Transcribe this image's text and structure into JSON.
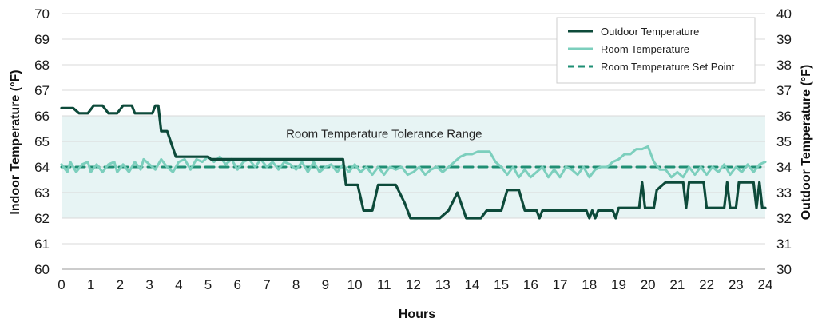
{
  "chart_data": {
    "type": "line",
    "xlabel": "Hours",
    "ylabel_left": "Indoor Temperature (°F)",
    "ylabel_right": "Outdoor Temperature (°F)",
    "x_range": [
      0,
      24
    ],
    "x_ticks": [
      "0",
      "1",
      "2",
      "3",
      "4",
      "5",
      "6",
      "7",
      "8",
      "9",
      "10",
      "11",
      "12",
      "13",
      "14",
      "15",
      "16",
      "17",
      "18",
      "19",
      "20",
      "21",
      "22",
      "23",
      "24"
    ],
    "ylim_left": [
      60,
      70
    ],
    "y_ticks_left": [
      "60",
      "61",
      "62",
      "63",
      "64",
      "65",
      "66",
      "67",
      "68",
      "69",
      "70"
    ],
    "ylim_right": [
      30,
      40
    ],
    "y_ticks_right": [
      "30",
      "31",
      "32",
      "33",
      "34",
      "35",
      "36",
      "37",
      "38",
      "39",
      "40"
    ],
    "grid": "horizontal",
    "legend_position": "top-right",
    "tolerance_band": {
      "label": "Room Temperature Tolerance Range",
      "y_low": 62,
      "y_high": 66,
      "color": "#e7f4f4"
    },
    "series": [
      {
        "name": "Outdoor Temperature",
        "axis": "right",
        "style": "solid",
        "color": "#0d4a3a",
        "points": [
          [
            0,
            36.3
          ],
          [
            0.4,
            36.3
          ],
          [
            0.6,
            36.1
          ],
          [
            0.9,
            36.1
          ],
          [
            1.1,
            36.4
          ],
          [
            1.4,
            36.4
          ],
          [
            1.6,
            36.1
          ],
          [
            1.9,
            36.1
          ],
          [
            2.1,
            36.4
          ],
          [
            2.4,
            36.4
          ],
          [
            2.5,
            36.1
          ],
          [
            3.1,
            36.1
          ],
          [
            3.2,
            36.4
          ],
          [
            3.3,
            36.4
          ],
          [
            3.4,
            35.4
          ],
          [
            3.6,
            35.4
          ],
          [
            3.9,
            34.4
          ],
          [
            5.0,
            34.4
          ],
          [
            5.1,
            34.3
          ],
          [
            9.6,
            34.3
          ],
          [
            9.7,
            33.3
          ],
          [
            10.1,
            33.3
          ],
          [
            10.3,
            32.3
          ],
          [
            10.6,
            32.3
          ],
          [
            10.8,
            33.3
          ],
          [
            11.4,
            33.3
          ],
          [
            11.7,
            32.6
          ],
          [
            11.9,
            32.0
          ],
          [
            12.9,
            32.0
          ],
          [
            13.2,
            32.3
          ],
          [
            13.5,
            33.0
          ],
          [
            13.8,
            32.0
          ],
          [
            14.3,
            32.0
          ],
          [
            14.5,
            32.3
          ],
          [
            15.0,
            32.3
          ],
          [
            15.2,
            33.1
          ],
          [
            15.6,
            33.1
          ],
          [
            15.8,
            32.3
          ],
          [
            16.2,
            32.3
          ],
          [
            16.3,
            32.0
          ],
          [
            16.4,
            32.3
          ],
          [
            17.9,
            32.3
          ],
          [
            18.0,
            32.0
          ],
          [
            18.1,
            32.3
          ],
          [
            18.2,
            32.0
          ],
          [
            18.3,
            32.3
          ],
          [
            18.8,
            32.3
          ],
          [
            18.9,
            32.0
          ],
          [
            19.0,
            32.4
          ],
          [
            19.7,
            32.4
          ],
          [
            19.8,
            33.4
          ],
          [
            19.9,
            32.4
          ],
          [
            20.2,
            32.4
          ],
          [
            20.3,
            33.1
          ],
          [
            20.6,
            33.4
          ],
          [
            21.2,
            33.4
          ],
          [
            21.3,
            32.4
          ],
          [
            21.4,
            33.4
          ],
          [
            21.9,
            33.4
          ],
          [
            22.0,
            32.4
          ],
          [
            22.6,
            32.4
          ],
          [
            22.7,
            33.4
          ],
          [
            22.8,
            32.4
          ],
          [
            23.0,
            32.4
          ],
          [
            23.1,
            33.4
          ],
          [
            23.6,
            33.4
          ],
          [
            23.7,
            32.4
          ],
          [
            23.8,
            33.4
          ],
          [
            23.9,
            32.4
          ],
          [
            24,
            32.4
          ]
        ]
      },
      {
        "name": "Room Temperature",
        "axis": "left",
        "style": "solid",
        "color": "#7ccfbd",
        "points": [
          [
            0,
            64.1
          ],
          [
            0.2,
            63.8
          ],
          [
            0.3,
            64.2
          ],
          [
            0.5,
            63.8
          ],
          [
            0.7,
            64.1
          ],
          [
            0.9,
            64.2
          ],
          [
            1.0,
            63.8
          ],
          [
            1.2,
            64.1
          ],
          [
            1.4,
            63.8
          ],
          [
            1.6,
            64.1
          ],
          [
            1.8,
            64.2
          ],
          [
            1.9,
            63.8
          ],
          [
            2.1,
            64.1
          ],
          [
            2.3,
            63.8
          ],
          [
            2.5,
            64.2
          ],
          [
            2.7,
            63.9
          ],
          [
            2.8,
            64.3
          ],
          [
            3.0,
            64.1
          ],
          [
            3.2,
            63.9
          ],
          [
            3.4,
            64.3
          ],
          [
            3.6,
            64.0
          ],
          [
            3.8,
            63.8
          ],
          [
            4.0,
            64.2
          ],
          [
            4.2,
            64.3
          ],
          [
            4.4,
            63.9
          ],
          [
            4.6,
            64.3
          ],
          [
            4.8,
            64.2
          ],
          [
            5.0,
            64.4
          ],
          [
            5.2,
            64.2
          ],
          [
            5.4,
            64.4
          ],
          [
            5.6,
            64.1
          ],
          [
            5.8,
            64.3
          ],
          [
            6.0,
            63.9
          ],
          [
            6.2,
            64.2
          ],
          [
            6.4,
            64.3
          ],
          [
            6.6,
            64.0
          ],
          [
            6.8,
            64.3
          ],
          [
            7.0,
            64.0
          ],
          [
            7.2,
            64.2
          ],
          [
            7.4,
            63.9
          ],
          [
            7.6,
            64.2
          ],
          [
            7.8,
            64.1
          ],
          [
            8.0,
            63.9
          ],
          [
            8.2,
            64.2
          ],
          [
            8.4,
            63.8
          ],
          [
            8.6,
            64.2
          ],
          [
            8.8,
            63.8
          ],
          [
            9.0,
            64.0
          ],
          [
            9.2,
            64.1
          ],
          [
            9.4,
            63.8
          ],
          [
            9.6,
            64.1
          ],
          [
            9.8,
            63.8
          ],
          [
            10.0,
            64.1
          ],
          [
            10.2,
            63.8
          ],
          [
            10.4,
            64.0
          ],
          [
            10.6,
            63.7
          ],
          [
            10.8,
            64.0
          ],
          [
            11.0,
            63.7
          ],
          [
            11.2,
            64.0
          ],
          [
            11.4,
            63.9
          ],
          [
            11.6,
            64.0
          ],
          [
            11.8,
            63.7
          ],
          [
            12.0,
            63.8
          ],
          [
            12.2,
            64.0
          ],
          [
            12.4,
            63.7
          ],
          [
            12.6,
            63.9
          ],
          [
            12.8,
            64.0
          ],
          [
            13.0,
            63.8
          ],
          [
            13.2,
            64.0
          ],
          [
            13.4,
            64.2
          ],
          [
            13.6,
            64.4
          ],
          [
            13.8,
            64.5
          ],
          [
            14.0,
            64.5
          ],
          [
            14.2,
            64.6
          ],
          [
            14.6,
            64.6
          ],
          [
            14.8,
            64.2
          ],
          [
            15.0,
            64.0
          ],
          [
            15.2,
            63.7
          ],
          [
            15.4,
            64.0
          ],
          [
            15.6,
            63.6
          ],
          [
            15.8,
            63.9
          ],
          [
            16.0,
            63.6
          ],
          [
            16.2,
            63.8
          ],
          [
            16.4,
            64.0
          ],
          [
            16.6,
            63.6
          ],
          [
            16.8,
            63.9
          ],
          [
            17.0,
            63.6
          ],
          [
            17.2,
            64.0
          ],
          [
            17.4,
            63.9
          ],
          [
            17.6,
            63.7
          ],
          [
            17.8,
            64.0
          ],
          [
            18.0,
            63.6
          ],
          [
            18.2,
            63.9
          ],
          [
            18.4,
            64.0
          ],
          [
            18.6,
            64.0
          ],
          [
            18.8,
            64.2
          ],
          [
            19.0,
            64.3
          ],
          [
            19.2,
            64.5
          ],
          [
            19.4,
            64.5
          ],
          [
            19.6,
            64.7
          ],
          [
            19.8,
            64.7
          ],
          [
            20.0,
            64.8
          ],
          [
            20.2,
            64.2
          ],
          [
            20.4,
            63.9
          ],
          [
            20.6,
            63.9
          ],
          [
            20.8,
            63.6
          ],
          [
            21.0,
            63.8
          ],
          [
            21.2,
            63.6
          ],
          [
            21.4,
            64.0
          ],
          [
            21.6,
            63.7
          ],
          [
            21.8,
            64.0
          ],
          [
            22.0,
            63.7
          ],
          [
            22.2,
            64.0
          ],
          [
            22.4,
            63.8
          ],
          [
            22.6,
            64.1
          ],
          [
            22.8,
            63.7
          ],
          [
            23.0,
            64.0
          ],
          [
            23.2,
            63.8
          ],
          [
            23.4,
            64.1
          ],
          [
            23.6,
            63.8
          ],
          [
            23.8,
            64.1
          ],
          [
            24,
            64.2
          ]
        ]
      },
      {
        "name": "Room Temperature Set Point",
        "axis": "left",
        "style": "dashed",
        "color": "#1f8f74",
        "points": [
          [
            0,
            64
          ],
          [
            24,
            64
          ]
        ]
      }
    ]
  }
}
